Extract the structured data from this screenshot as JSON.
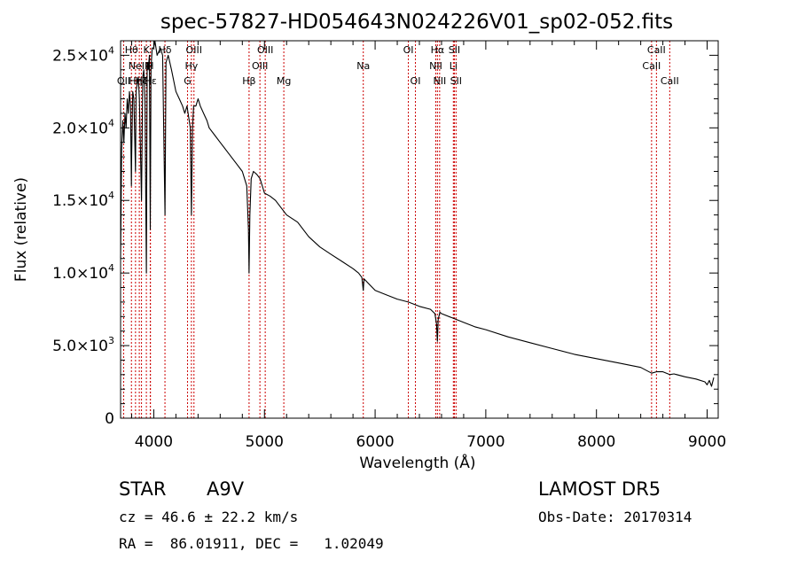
{
  "chart_data": {
    "type": "line",
    "title": "spec-57827-HD054643N024226V01_sp02-052.fits",
    "xlabel": "Wavelength (Å)",
    "ylabel": "Flux (relative)",
    "xlim": [
      3700,
      9100
    ],
    "ylim": [
      0,
      26000
    ],
    "xticks": [
      {
        "value": 4000,
        "label": "4000"
      },
      {
        "value": 5000,
        "label": "5000"
      },
      {
        "value": 6000,
        "label": "6000"
      },
      {
        "value": 7000,
        "label": "7000"
      },
      {
        "value": 8000,
        "label": "8000"
      },
      {
        "value": 9000,
        "label": "9000"
      }
    ],
    "yticks": [
      {
        "value": 0,
        "mant": "0",
        "exp": ""
      },
      {
        "value": 5000,
        "mant": "5.0×10",
        "exp": "3"
      },
      {
        "value": 10000,
        "mant": "1.0×10",
        "exp": "4"
      },
      {
        "value": 15000,
        "mant": "1.5×10",
        "exp": "4"
      },
      {
        "value": 20000,
        "mant": "2.0×10",
        "exp": "4"
      },
      {
        "value": 25000,
        "mant": "2.5×10",
        "exp": "4"
      }
    ],
    "grid": false,
    "series": [
      {
        "x": [
          3700,
          3710,
          3720,
          3730,
          3740,
          3750,
          3760,
          3770,
          3780,
          3790,
          3798,
          3800,
          3810,
          3820,
          3835,
          3840,
          3850,
          3860,
          3870,
          3889,
          3900,
          3910,
          3920,
          3933,
          3940,
          3950,
          3960,
          3968,
          3975,
          3985,
          4000,
          4010,
          4030,
          4060,
          4080,
          4101,
          4110,
          4130,
          4160,
          4200,
          4230,
          4260,
          4280,
          4300,
          4320,
          4330,
          4340,
          4350,
          4360,
          4380,
          4400,
          4420,
          4450,
          4480,
          4500,
          4550,
          4600,
          4650,
          4700,
          4750,
          4800,
          4820,
          4840,
          4855,
          4861,
          4868,
          4880,
          4900,
          4930,
          4960,
          5000,
          5050,
          5100,
          5150,
          5200,
          5300,
          5400,
          5500,
          5600,
          5700,
          5800,
          5850,
          5880,
          5893,
          5900,
          5950,
          6000,
          6100,
          6200,
          6300,
          6400,
          6500,
          6540,
          6555,
          6563,
          6570,
          6585,
          6600,
          6700,
          6800,
          6900,
          7000,
          7200,
          7400,
          7600,
          7800,
          8000,
          8200,
          8400,
          8498,
          8542,
          8600,
          8662,
          8700,
          8800,
          8900,
          8980,
          9000,
          9020,
          9040,
          9060
        ],
        "y": [
          11000,
          18500,
          20500,
          19000,
          21000,
          20000,
          22000,
          21000,
          22500,
          21500,
          16000,
          18000,
          22500,
          22000,
          17000,
          22500,
          23000,
          23500,
          22000,
          15000,
          23500,
          24000,
          22000,
          10000,
          24500,
          24000,
          25000,
          13000,
          24000,
          25500,
          25500,
          26000,
          25000,
          25500,
          25000,
          14000,
          24500,
          25000,
          24000,
          22500,
          22000,
          21500,
          21000,
          21500,
          20500,
          20000,
          14000,
          20000,
          21500,
          21500,
          22000,
          21500,
          21000,
          20500,
          20000,
          19500,
          19000,
          18500,
          18000,
          17500,
          17000,
          16500,
          16000,
          13000,
          10000,
          14000,
          16500,
          17000,
          16800,
          16500,
          15500,
          15300,
          15000,
          14500,
          14000,
          13500,
          12500,
          11800,
          11300,
          10800,
          10300,
          10000,
          9700,
          8800,
          9600,
          9200,
          8800,
          8500,
          8200,
          8000,
          7700,
          7500,
          7200,
          6500,
          5300,
          6800,
          7300,
          7200,
          6900,
          6600,
          6300,
          6100,
          5600,
          5200,
          4800,
          4400,
          4100,
          3800,
          3500,
          3100,
          3200,
          3200,
          3000,
          3050,
          2850,
          2700,
          2500,
          2300,
          2600,
          2200,
          2800
        ]
      }
    ],
    "lines": [
      {
        "x": 3728,
        "label": "OII",
        "row": 2
      },
      {
        "x": 3798,
        "label": "Hθ",
        "row": 0
      },
      {
        "x": 3835,
        "label": "Hη",
        "row": 2
      },
      {
        "x": 3869,
        "label": "NeIII",
        "row": 1
      },
      {
        "x": 3889,
        "label": "Hζ",
        "row": 2
      },
      {
        "x": 3933,
        "label": "K",
        "row": 0
      },
      {
        "x": 3968,
        "label": "H",
        "row": 1
      },
      {
        "x": 3970,
        "label": "Hε",
        "row": 2
      },
      {
        "x": 4101,
        "label": "Hδ",
        "row": 0
      },
      {
        "x": 4305,
        "label": "G",
        "row": 2
      },
      {
        "x": 4340,
        "label": "Hγ",
        "row": 1
      },
      {
        "x": 4363,
        "label": "OIII",
        "row": 0
      },
      {
        "x": 4861,
        "label": "Hβ",
        "row": 2
      },
      {
        "x": 4959,
        "label": "OIII",
        "row": 1
      },
      {
        "x": 5007,
        "label": "OIII",
        "row": 0
      },
      {
        "x": 5175,
        "label": "Mg",
        "row": 2
      },
      {
        "x": 5893,
        "label": "Na",
        "row": 1
      },
      {
        "x": 6300,
        "label": "OI",
        "row": 0
      },
      {
        "x": 6364,
        "label": "OI",
        "row": 2
      },
      {
        "x": 6548,
        "label": "NII",
        "row": 1
      },
      {
        "x": 6563,
        "label": "Hα",
        "row": 0
      },
      {
        "x": 6583,
        "label": "NII",
        "row": 2
      },
      {
        "x": 6707,
        "label": "Li",
        "row": 1
      },
      {
        "x": 6716,
        "label": "SII",
        "row": 0
      },
      {
        "x": 6731,
        "label": "SII",
        "row": 2
      },
      {
        "x": 8498,
        "label": "CaII",
        "row": 1
      },
      {
        "x": 8542,
        "label": "CaII",
        "row": 0
      },
      {
        "x": 8662,
        "label": "CaII",
        "row": 2
      }
    ]
  },
  "info": {
    "object_type": "STAR",
    "subclass": "A9V",
    "survey": "LAMOST DR5",
    "redshift": "cz = 46.6 ± 22.2 km/s",
    "obs_date": "Obs-Date: 20170314",
    "coords": "RA =  86.01911, DEC =   1.02049"
  },
  "colors": {
    "spectrum": "#000000",
    "line_markers": "#cc0000",
    "text": "#000000"
  }
}
